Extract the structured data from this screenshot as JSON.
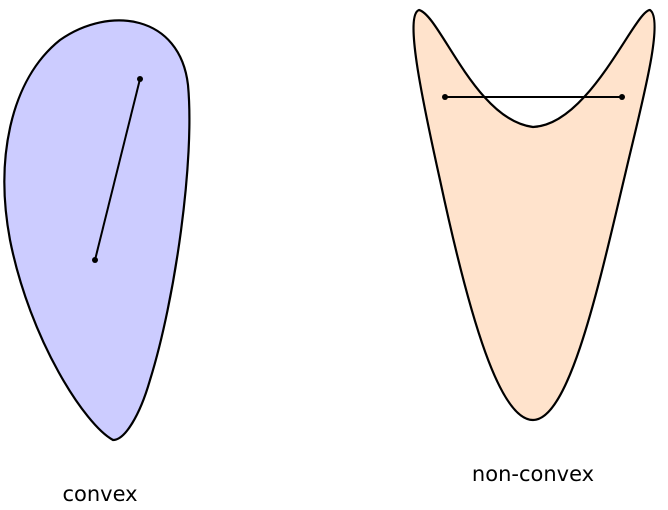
{
  "colors": {
    "convex_fill": "#ccccff",
    "nonconvex_fill": "#ffe3cc",
    "stroke": "#000000",
    "background": "#ffffff"
  },
  "labels": {
    "convex": "convex",
    "nonconvex": "non-convex"
  }
}
